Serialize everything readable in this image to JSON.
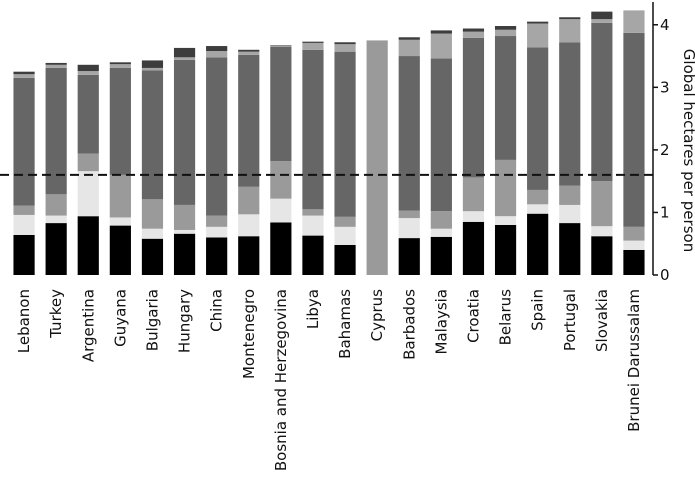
{
  "chart_data": {
    "type": "bar",
    "stacked": true,
    "title": "",
    "xlabel": "",
    "ylabel": "Global hectares per person",
    "ylim": [
      0,
      4.3
    ],
    "yticks": [
      0,
      1,
      2,
      3,
      4
    ],
    "y_axis_side": "right",
    "grid": false,
    "legend": "none",
    "reference_line": {
      "y": 1.6,
      "style": "dashed"
    },
    "categories": [
      "Lebanon",
      "Turkey",
      "Argentina",
      "Guyana",
      "Bulgaria",
      "Hungary",
      "China",
      "Montenegro",
      "Bosnia and Herzegovina",
      "Libya",
      "Bahamas",
      "Cyprus",
      "Barbados",
      "Malaysia",
      "Croatia",
      "Belarus",
      "Spain",
      "Portugal",
      "Slovakia",
      "Brunei Darussalam"
    ],
    "series": [
      {
        "color": "#000000",
        "values": [
          0.64,
          0.83,
          0.94,
          0.79,
          0.58,
          0.66,
          0.6,
          0.62,
          0.84,
          0.63,
          0.48,
          0.0,
          0.59,
          0.61,
          0.85,
          0.8,
          0.98,
          0.83,
          0.62,
          0.4
        ]
      },
      {
        "color": "#e6e6e6",
        "values": [
          0.32,
          0.12,
          0.72,
          0.13,
          0.16,
          0.06,
          0.17,
          0.35,
          0.38,
          0.32,
          0.29,
          0.0,
          0.32,
          0.13,
          0.17,
          0.14,
          0.15,
          0.29,
          0.16,
          0.15
        ]
      },
      {
        "color": "#9a9a9a",
        "values": [
          0.15,
          0.34,
          0.28,
          0.68,
          0.47,
          0.4,
          0.18,
          0.44,
          0.6,
          0.1,
          0.16,
          3.75,
          0.12,
          0.28,
          0.54,
          0.9,
          0.23,
          0.31,
          0.72,
          0.22
        ]
      },
      {
        "color": "#666666",
        "values": [
          2.04,
          2.02,
          1.26,
          1.71,
          2.06,
          2.32,
          2.53,
          2.11,
          1.83,
          2.55,
          2.64,
          0.0,
          2.47,
          2.44,
          2.23,
          1.98,
          2.28,
          2.29,
          2.53,
          3.1
        ]
      },
      {
        "color": "#a6a6a6",
        "values": [
          0.06,
          0.05,
          0.06,
          0.06,
          0.04,
          0.04,
          0.1,
          0.05,
          0.01,
          0.11,
          0.12,
          0.0,
          0.26,
          0.4,
          0.1,
          0.1,
          0.38,
          0.37,
          0.06,
          0.36
        ]
      },
      {
        "color": "#3d3d3d",
        "values": [
          0.04,
          0.03,
          0.1,
          0.03,
          0.12,
          0.15,
          0.08,
          0.03,
          0.01,
          0.02,
          0.03,
          0.0,
          0.04,
          0.05,
          0.05,
          0.06,
          0.03,
          0.03,
          0.12,
          0.0
        ]
      }
    ]
  }
}
